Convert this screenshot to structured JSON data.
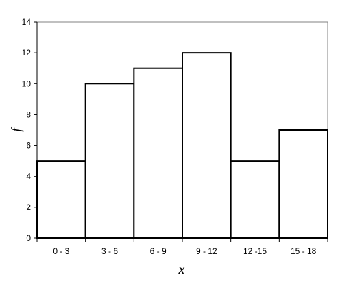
{
  "chart_data": {
    "type": "bar",
    "categories": [
      "0 - 3",
      "3 - 6",
      "6 - 9",
      "9 - 12",
      "12 -15",
      "15 - 18"
    ],
    "values": [
      5,
      10,
      11,
      12,
      5,
      7
    ],
    "title": "",
    "xlabel": "x",
    "ylabel": "f",
    "ylim": [
      0,
      14
    ],
    "yticks": [
      "0",
      "2",
      "4",
      "6",
      "8",
      "10",
      "12",
      "14"
    ],
    "grid": false,
    "legend": "none",
    "colors": {
      "bar_fill": "#ffffff",
      "bar_stroke": "#000000",
      "axis": "#000000",
      "plot_border": "#808080"
    }
  }
}
